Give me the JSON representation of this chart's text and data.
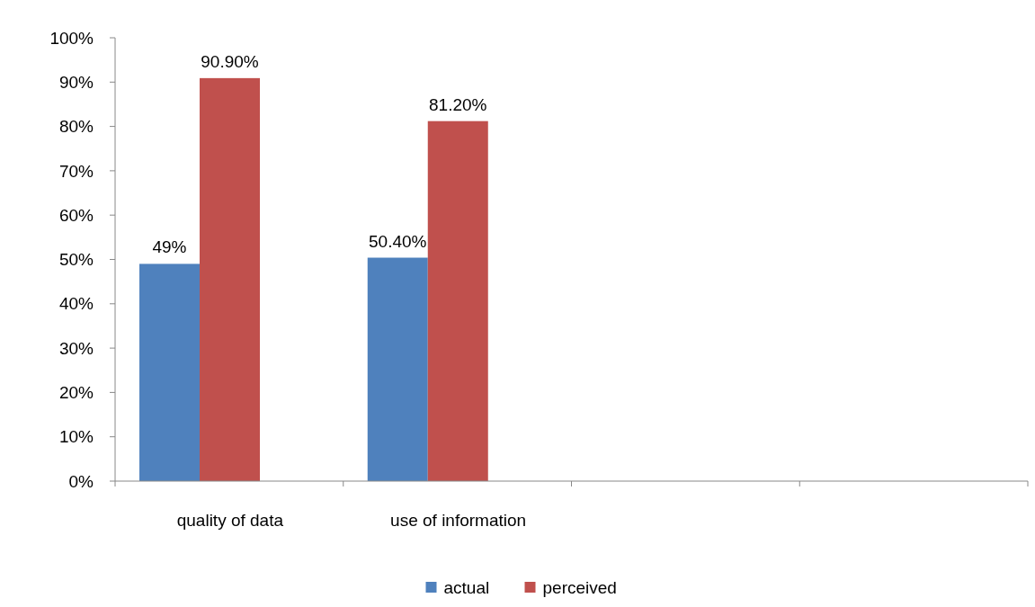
{
  "chart_data": {
    "type": "bar",
    "categories": [
      "quality of data",
      "use of information",
      null,
      null
    ],
    "series": [
      {
        "name": "actual",
        "color": "#4f81bd",
        "values": [
          49,
          50.4,
          null,
          null
        ],
        "value_labels": [
          "49%",
          "50.40%",
          null,
          null
        ]
      },
      {
        "name": "perceived",
        "color": "#c0504d",
        "values": [
          90.9,
          81.2,
          null,
          null
        ],
        "value_labels": [
          "90.90%",
          "81.20%",
          null,
          null
        ]
      }
    ],
    "ylim": [
      0,
      100
    ],
    "yticks": [
      {
        "value": 0,
        "label": "0%"
      },
      {
        "value": 10,
        "label": "10%"
      },
      {
        "value": 20,
        "label": "20%"
      },
      {
        "value": 30,
        "label": "30%"
      },
      {
        "value": 40,
        "label": "40%"
      },
      {
        "value": 50,
        "label": "50%"
      },
      {
        "value": 60,
        "label": "60%"
      },
      {
        "value": 70,
        "label": "70%"
      },
      {
        "value": 80,
        "label": "80%"
      },
      {
        "value": 90,
        "label": "90%"
      },
      {
        "value": 100,
        "label": "100%"
      }
    ],
    "legend": "bottom"
  }
}
